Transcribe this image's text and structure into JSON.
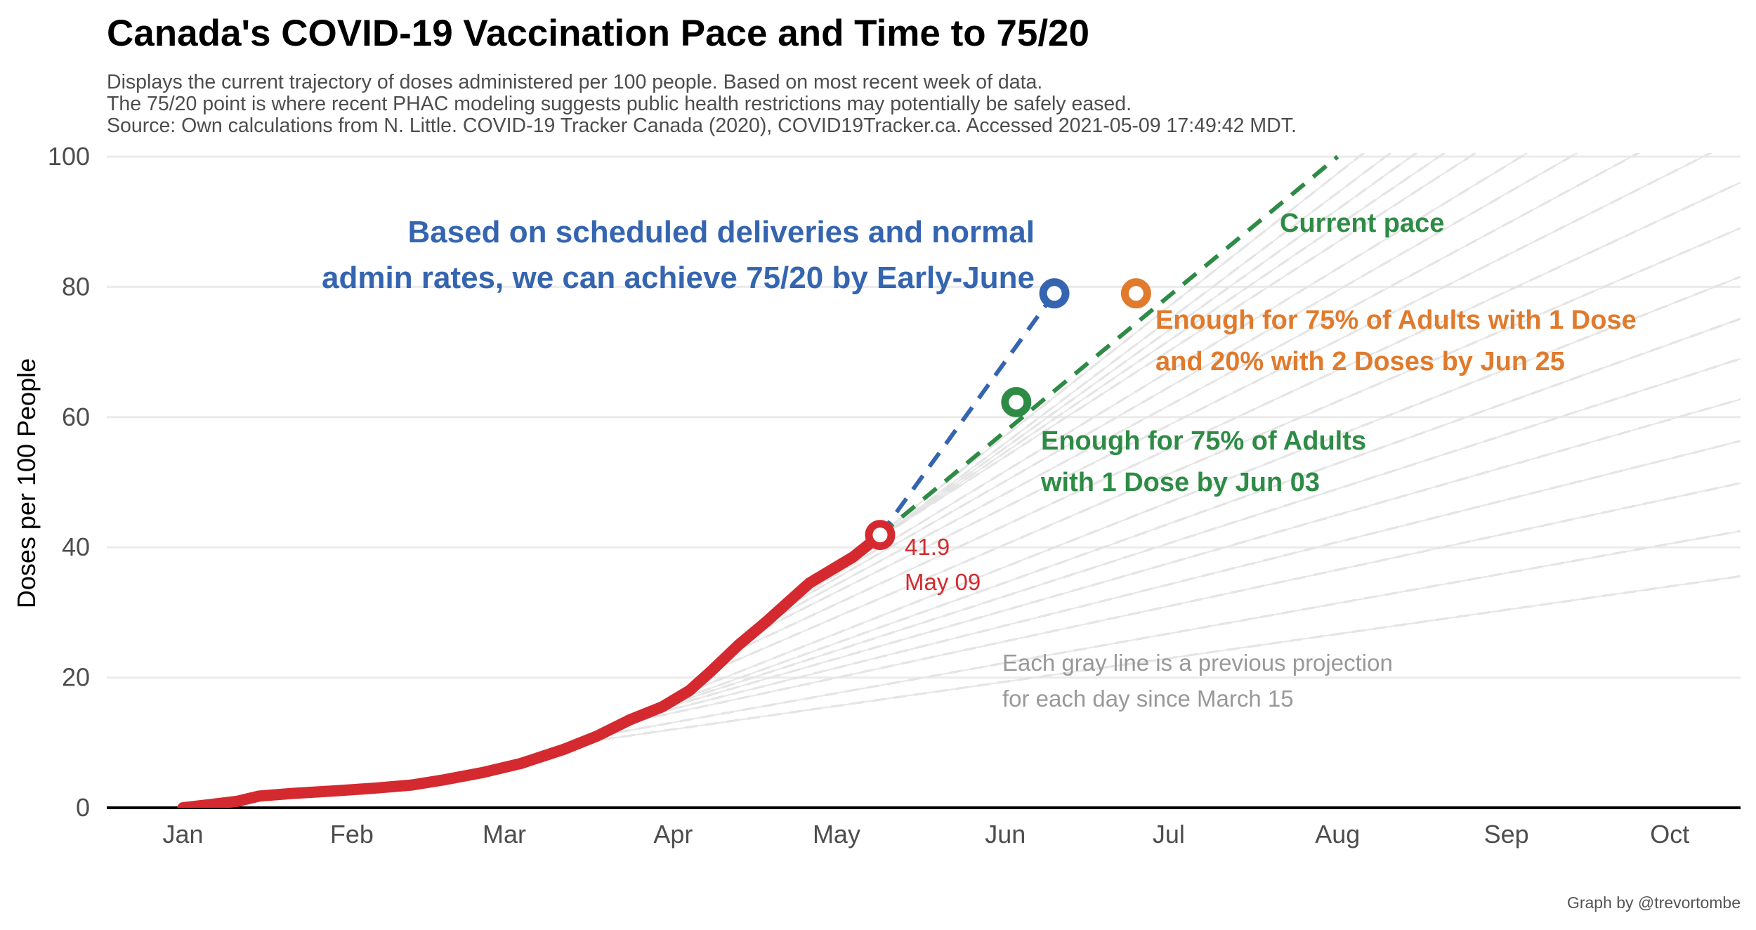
{
  "chart_data": {
    "type": "line",
    "title": "Canada's COVID-19 Vaccination Pace and Time to 75/20",
    "subtitle_lines": [
      "Displays the current trajectory of doses administered per 100 people. Based on most recent week of data.",
      "The 75/20 point is where recent PHAC modeling suggests public health restrictions may potentially be safely eased.",
      "Source: Own calculations from N. Little. COVID-19 Tracker Canada (2020), COVID19Tracker.ca. Accessed 2021-05-09 17:49:42 MDT."
    ],
    "xlabel": "",
    "ylabel": "Doses per 100 People",
    "x_unit": "day of 2021 (Jan 1 = 0)",
    "xlim": [
      -14,
      286
    ],
    "ylim": [
      0,
      100
    ],
    "x_ticks": [
      {
        "label": "Jan",
        "value": 0
      },
      {
        "label": "Feb",
        "value": 31
      },
      {
        "label": "Mar",
        "value": 59
      },
      {
        "label": "Apr",
        "value": 90
      },
      {
        "label": "May",
        "value": 120
      },
      {
        "label": "Jun",
        "value": 151
      },
      {
        "label": "Jul",
        "value": 181
      },
      {
        "label": "Aug",
        "value": 212
      },
      {
        "label": "Sep",
        "value": 243
      },
      {
        "label": "Oct",
        "value": 273
      }
    ],
    "y_ticks": [
      0,
      20,
      40,
      60,
      80,
      100
    ],
    "series": [
      {
        "name": "Actual doses",
        "color": "#d42a2f",
        "x": [
          0,
          5,
          10,
          14,
          20,
          28,
          35,
          42,
          48,
          55,
          62,
          70,
          76,
          82,
          88,
          93,
          97,
          102,
          107,
          111,
          115,
          119,
          123,
          126,
          128
        ],
        "y": [
          0,
          0.5,
          1.0,
          1.8,
          2.2,
          2.6,
          3.0,
          3.5,
          4.3,
          5.4,
          6.8,
          9.0,
          11.0,
          13.5,
          15.5,
          18.0,
          21.0,
          25.0,
          28.5,
          31.5,
          34.5,
          36.5,
          38.5,
          40.5,
          41.9
        ]
      },
      {
        "name": "Current pace",
        "color": "#2e8b45",
        "x": [
          128,
          212
        ],
        "y": [
          41.9,
          100
        ]
      },
      {
        "name": "Scheduled deliveries",
        "color": "#3565b0",
        "x": [
          128,
          160
        ],
        "y": [
          41.9,
          79
        ]
      }
    ],
    "gray_projections": {
      "description": "Previous daily projections since March 15",
      "start_x": [
        73,
        76,
        79,
        82,
        85,
        88,
        91,
        94,
        97,
        100,
        103,
        106,
        109,
        112,
        115,
        118,
        121,
        124,
        127
      ],
      "start_y": [
        10.0,
        11.0,
        12.6,
        13.5,
        14.5,
        15.5,
        16.6,
        18.2,
        21.0,
        23.5,
        26.0,
        28.0,
        30.0,
        31.8,
        34.5,
        35.8,
        37.3,
        39.0,
        41.3
      ],
      "slope_per_day": [
        0.12,
        0.15,
        0.18,
        0.21,
        0.24,
        0.27,
        0.3,
        0.33,
        0.36,
        0.39,
        0.42,
        0.45,
        0.48,
        0.51,
        0.54,
        0.57,
        0.6,
        0.63,
        0.66
      ]
    },
    "points": [
      {
        "name": "today",
        "x": 128,
        "y": 41.9,
        "color": "#d42a2f",
        "label_lines": [
          "41.9",
          "May 09"
        ]
      },
      {
        "name": "first-dose-75",
        "x": 153,
        "y": 62.3,
        "color": "#2e8b45",
        "label_lines": [
          "Enough for 75% of Adults",
          "with 1 Dose by Jun 03"
        ]
      },
      {
        "name": "target-75-20",
        "x": 175,
        "y": 79,
        "color": "#e07a2c",
        "label_lines": [
          "Enough for 75% of Adults with 1 Dose",
          "and 20% with 2 Doses by Jun 25"
        ]
      },
      {
        "name": "scheduled",
        "x": 160,
        "y": 79,
        "color": "#3565b0",
        "label_lines": []
      }
    ],
    "annotations": {
      "blue": [
        "Based on scheduled deliveries and normal",
        "admin rates, we can achieve 75/20 by Early-June"
      ],
      "current_pace": "Current pace",
      "gray": [
        "Each gray line is a previous projection",
        "for each day since March 15"
      ]
    },
    "credit": "Graph by @trevortombe",
    "grid": true,
    "legend": "none"
  }
}
